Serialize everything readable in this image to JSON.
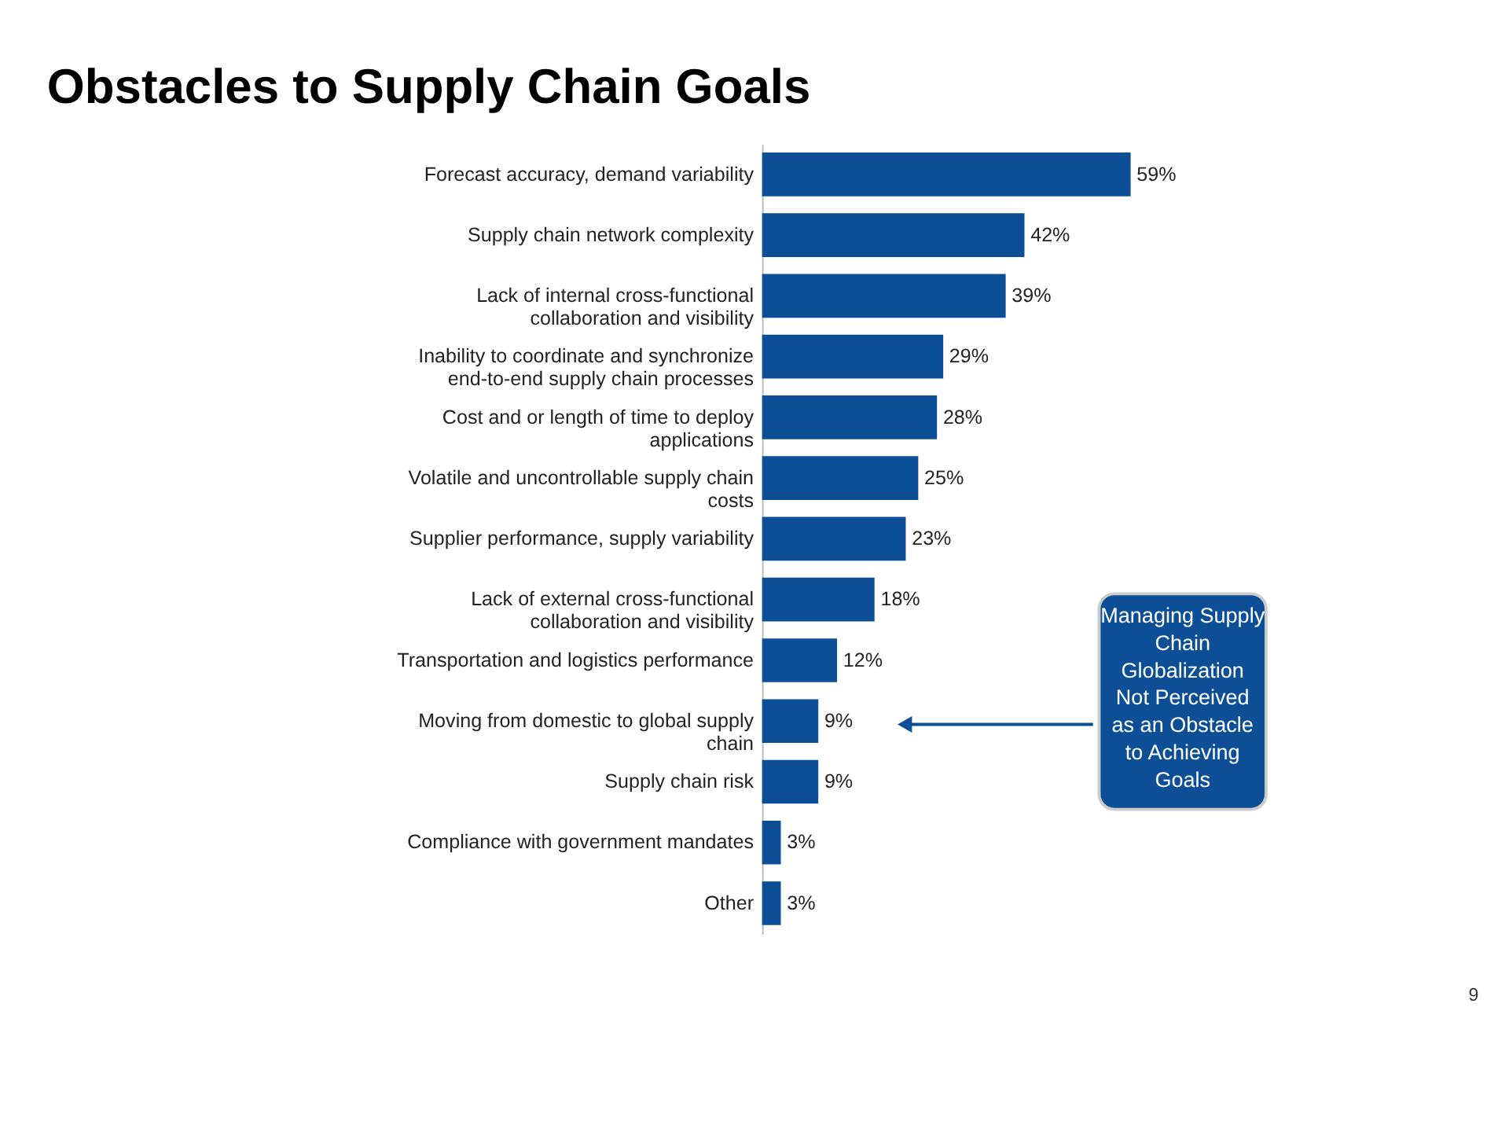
{
  "chart_data": {
    "type": "bar",
    "orientation": "horizontal",
    "title": "Obstacles to Supply Chain Goals",
    "categories": [
      "Forecast accuracy, demand variability",
      "Supply chain network complexity",
      "Lack of internal cross-functional collaboration and visibility",
      "Inability to coordinate and synchronize end-to-end supply chain processes",
      "Cost and or length of time to deploy applications",
      "Volatile and uncontrollable supply chain costs",
      "Supplier performance, supply variability",
      "Lack of external cross-functional collaboration and visibility",
      "Transportation and logistics performance",
      "Moving from domestic to global supply chain",
      "Supply chain risk",
      "Compliance with government mandates",
      "Other"
    ],
    "values": [
      59,
      42,
      39,
      29,
      28,
      25,
      23,
      18,
      12,
      9,
      9,
      3,
      3
    ],
    "value_labels": [
      "59%",
      "42%",
      "39%",
      "29%",
      "28%",
      "25%",
      "23%",
      "18%",
      "12%",
      "9%",
      "9%",
      "3%",
      "3%"
    ],
    "color": "#0d4f96",
    "annotations": [
      "Managing Supply Chain Globalization Not Perceived as an Obstacle to Achieving Goals",
      "9"
    ]
  }
}
